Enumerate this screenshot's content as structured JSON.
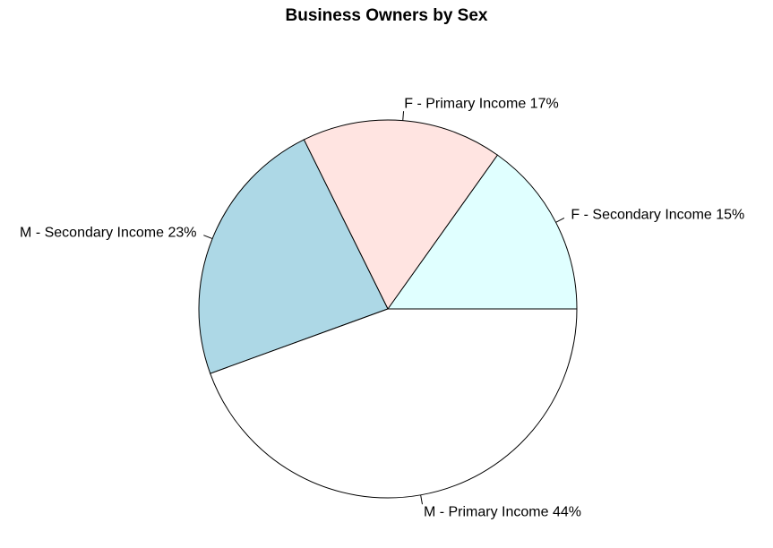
{
  "chart_data": {
    "type": "pie",
    "title": "Business Owners by Sex",
    "slices": [
      {
        "label": "F - Secondary Income 15%",
        "value": 15,
        "color": "#e0ffff"
      },
      {
        "label": "F - Primary Income 17%",
        "value": 17,
        "color": "#ffe4e1"
      },
      {
        "label": "M - Secondary Income 23%",
        "value": 23,
        "color": "#add8e6"
      },
      {
        "label": "M - Primary Income 44%",
        "value": 44,
        "color": "#ffffff"
      }
    ],
    "direction": "counterclockwise",
    "start_angle_degrees": 0,
    "outline_color": "#000000"
  }
}
